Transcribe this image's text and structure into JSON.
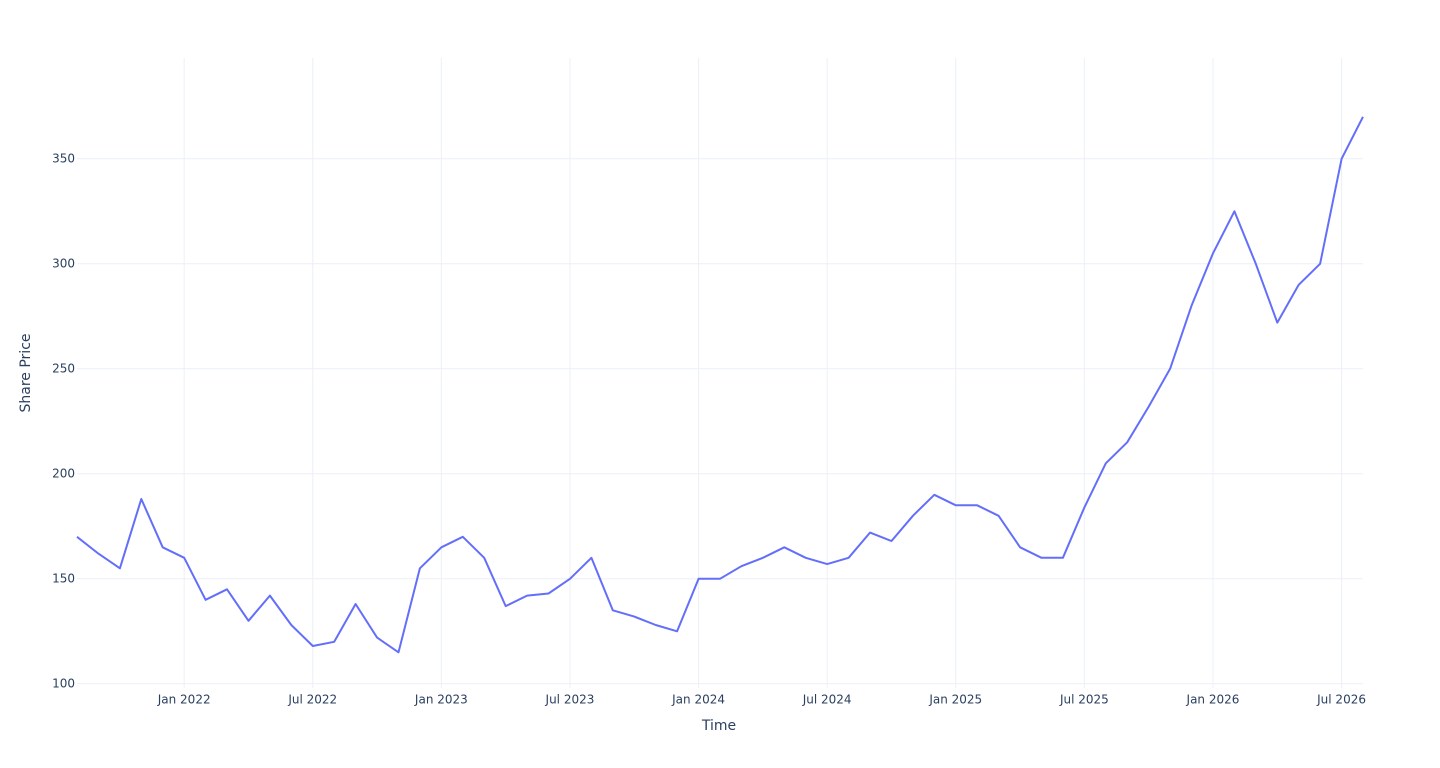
{
  "chart_data": {
    "type": "line",
    "x_label": "Time",
    "y_label": "Share Price",
    "x": [
      "2021-08",
      "2021-09",
      "2021-10",
      "2021-11",
      "2021-12",
      "2022-01",
      "2022-02",
      "2022-03",
      "2022-04",
      "2022-05",
      "2022-06",
      "2022-07",
      "2022-08",
      "2022-09",
      "2022-10",
      "2022-11",
      "2022-12",
      "2023-01",
      "2023-02",
      "2023-03",
      "2023-04",
      "2023-05",
      "2023-06",
      "2023-07",
      "2023-08",
      "2023-09",
      "2023-10",
      "2023-11",
      "2023-12",
      "2024-01",
      "2024-02",
      "2024-03",
      "2024-04",
      "2024-05",
      "2024-06",
      "2024-07",
      "2024-08",
      "2024-09",
      "2024-10",
      "2024-11",
      "2024-12",
      "2025-01",
      "2025-02",
      "2025-03",
      "2025-04",
      "2025-05",
      "2025-06",
      "2025-07",
      "2025-08",
      "2025-09",
      "2025-10",
      "2025-11",
      "2025-12",
      "2026-01",
      "2026-02",
      "2026-03",
      "2026-04",
      "2026-05",
      "2026-06",
      "2026-07",
      "2026-08"
    ],
    "values": [
      170,
      162,
      155,
      188,
      165,
      160,
      140,
      145,
      130,
      142,
      128,
      118,
      120,
      138,
      122,
      115,
      155,
      165,
      170,
      160,
      137,
      142,
      143,
      150,
      160,
      135,
      132,
      128,
      125,
      150,
      150,
      156,
      160,
      165,
      160,
      157,
      160,
      172,
      168,
      180,
      190,
      185,
      185,
      180,
      165,
      160,
      160,
      184,
      205,
      215,
      232,
      250,
      280,
      305,
      325,
      300,
      272,
      290,
      300,
      350,
      370
    ],
    "color": "#636efa",
    "xlim": [
      "2021-08",
      "2026-08"
    ],
    "xticks": [
      {
        "value": "2022-01",
        "label": "Jan 2022"
      },
      {
        "value": "2022-07",
        "label": "Jul 2022"
      },
      {
        "value": "2023-01",
        "label": "Jan 2023"
      },
      {
        "value": "2023-07",
        "label": "Jul 2023"
      },
      {
        "value": "2024-01",
        "label": "Jan 2024"
      },
      {
        "value": "2024-07",
        "label": "Jul 2024"
      },
      {
        "value": "2025-01",
        "label": "Jan 2025"
      },
      {
        "value": "2025-07",
        "label": "Jul 2025"
      },
      {
        "value": "2026-01",
        "label": "Jan 2026"
      },
      {
        "value": "2026-07",
        "label": "Jul 2026"
      }
    ],
    "ylim": [
      98,
      398
    ],
    "yticks": [
      100,
      150,
      200,
      250,
      300,
      350
    ],
    "grid": true
  }
}
